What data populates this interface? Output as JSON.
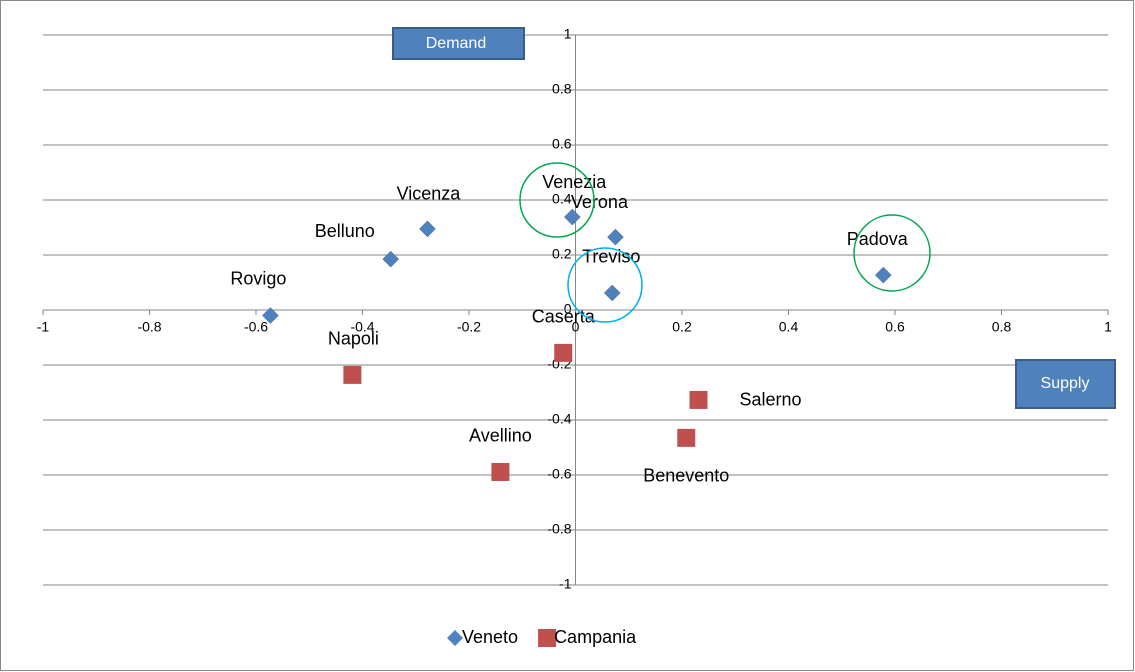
{
  "chart_data": {
    "type": "scatter",
    "annotations": [
      "Demand",
      "Supply"
    ],
    "series": [
      {
        "name": "Veneto",
        "color": "#4f81bd",
        "marker": "diamond",
        "point_labels": [
          "Rovigo",
          "Belluno",
          "Vicenza",
          "Venezia",
          "Verona",
          "Treviso",
          "Padova"
        ],
        "x": [
          -0.573,
          -0.347,
          -0.278,
          -0.006,
          0.075,
          0.069,
          0.578
        ],
        "values": [
          -0.02,
          0.185,
          0.295,
          0.338,
          0.265,
          0.062,
          0.127
        ]
      },
      {
        "name": "Campania",
        "color": "#c0504d",
        "marker": "square",
        "point_labels": [
          "Napoli",
          "Caserta",
          "Avellino",
          "Benevento",
          "Salerno"
        ],
        "x": [
          -0.419,
          -0.023,
          -0.141,
          0.208,
          0.231
        ],
        "values": [
          -0.236,
          -0.156,
          -0.589,
          -0.465,
          -0.327
        ]
      }
    ],
    "xlim": [
      -1,
      1
    ],
    "xticks": [
      -1,
      -0.8,
      -0.6,
      -0.4,
      -0.2,
      0,
      0.2,
      0.4,
      0.6,
      0.8,
      1
    ],
    "ylim": [
      -1,
      1
    ],
    "yticks": [
      -1,
      -0.8,
      -0.6,
      -0.4,
      -0.2,
      0,
      0.2,
      0.4,
      0.6,
      0.8,
      1
    ],
    "grid": true,
    "legend": "bottom"
  }
}
